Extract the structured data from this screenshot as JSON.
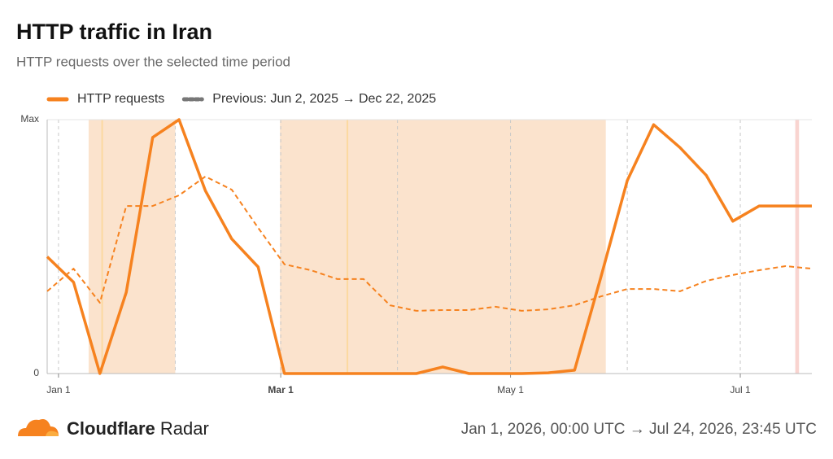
{
  "chart_data": {
    "type": "line",
    "title": "HTTP traffic in Iran",
    "subtitle": "HTTP requests over the selected time period",
    "x": [
      -3,
      4,
      11,
      18,
      25,
      32,
      39,
      46,
      53,
      60,
      67,
      74,
      81,
      88,
      95,
      102,
      109,
      116,
      123,
      130,
      137,
      144,
      151,
      158,
      165,
      172,
      179,
      186,
      193,
      200
    ],
    "series": [
      {
        "name": "HTTP requests",
        "color": "#f6821f",
        "dash": false,
        "values": [
          46,
          36,
          0,
          32,
          93,
          100,
          72,
          53,
          42,
          0,
          0,
          0,
          0,
          0,
          0,
          2.6,
          0,
          0,
          0,
          0.3,
          1.3,
          38,
          76,
          98,
          89,
          78,
          60,
          66,
          66,
          66
        ]
      },
      {
        "name": "Previous: Jun 2, 2025 → Dec 22, 2025",
        "color": "#f6821f",
        "dash": true,
        "values": [
          32.4,
          41.3,
          27.9,
          66,
          66,
          70.2,
          77.6,
          72.4,
          57.4,
          43,
          40.7,
          37.2,
          37.2,
          26.9,
          24.7,
          25,
          25,
          26.3,
          24.7,
          25.3,
          26.9,
          30.4,
          33.3,
          33.3,
          32.4,
          36.5,
          38.8,
          40.7,
          42.3,
          41.3
        ]
      }
    ],
    "xlim": [
      -3,
      200
    ],
    "xticks": [
      {
        "value": 0,
        "label": "Jan 1"
      },
      {
        "value": 59,
        "label": "Mar 1"
      },
      {
        "value": 120,
        "label": "May 1"
      },
      {
        "value": 181,
        "label": "Jul 1"
      }
    ],
    "x_gridlines": [
      0,
      31,
      59,
      90,
      120,
      151,
      181
    ],
    "ylim": [
      0,
      100
    ],
    "yticks": [
      0,
      {
        "value": 100,
        "label": "Max"
      }
    ],
    "highlight_ranges": [
      {
        "start": 8,
        "end": 31,
        "color": "#fbe3cd"
      },
      {
        "start": 58.8,
        "end": 145.3,
        "color": "#fbe3cd"
      },
      {
        "start": 195.6,
        "end": 196.6,
        "color": "#f9d4d0"
      }
    ],
    "highlight_lines": [
      {
        "at": 11.6,
        "color": "#fcd9a0"
      },
      {
        "at": 76.7,
        "color": "#fcd9a0"
      }
    ]
  },
  "footer": {
    "brand_name": "Cloudflare",
    "brand_product": "Radar",
    "time_range": "Jan 1, 2026, 00:00 UTC → Jul 24, 2026, 23:45 UTC"
  }
}
